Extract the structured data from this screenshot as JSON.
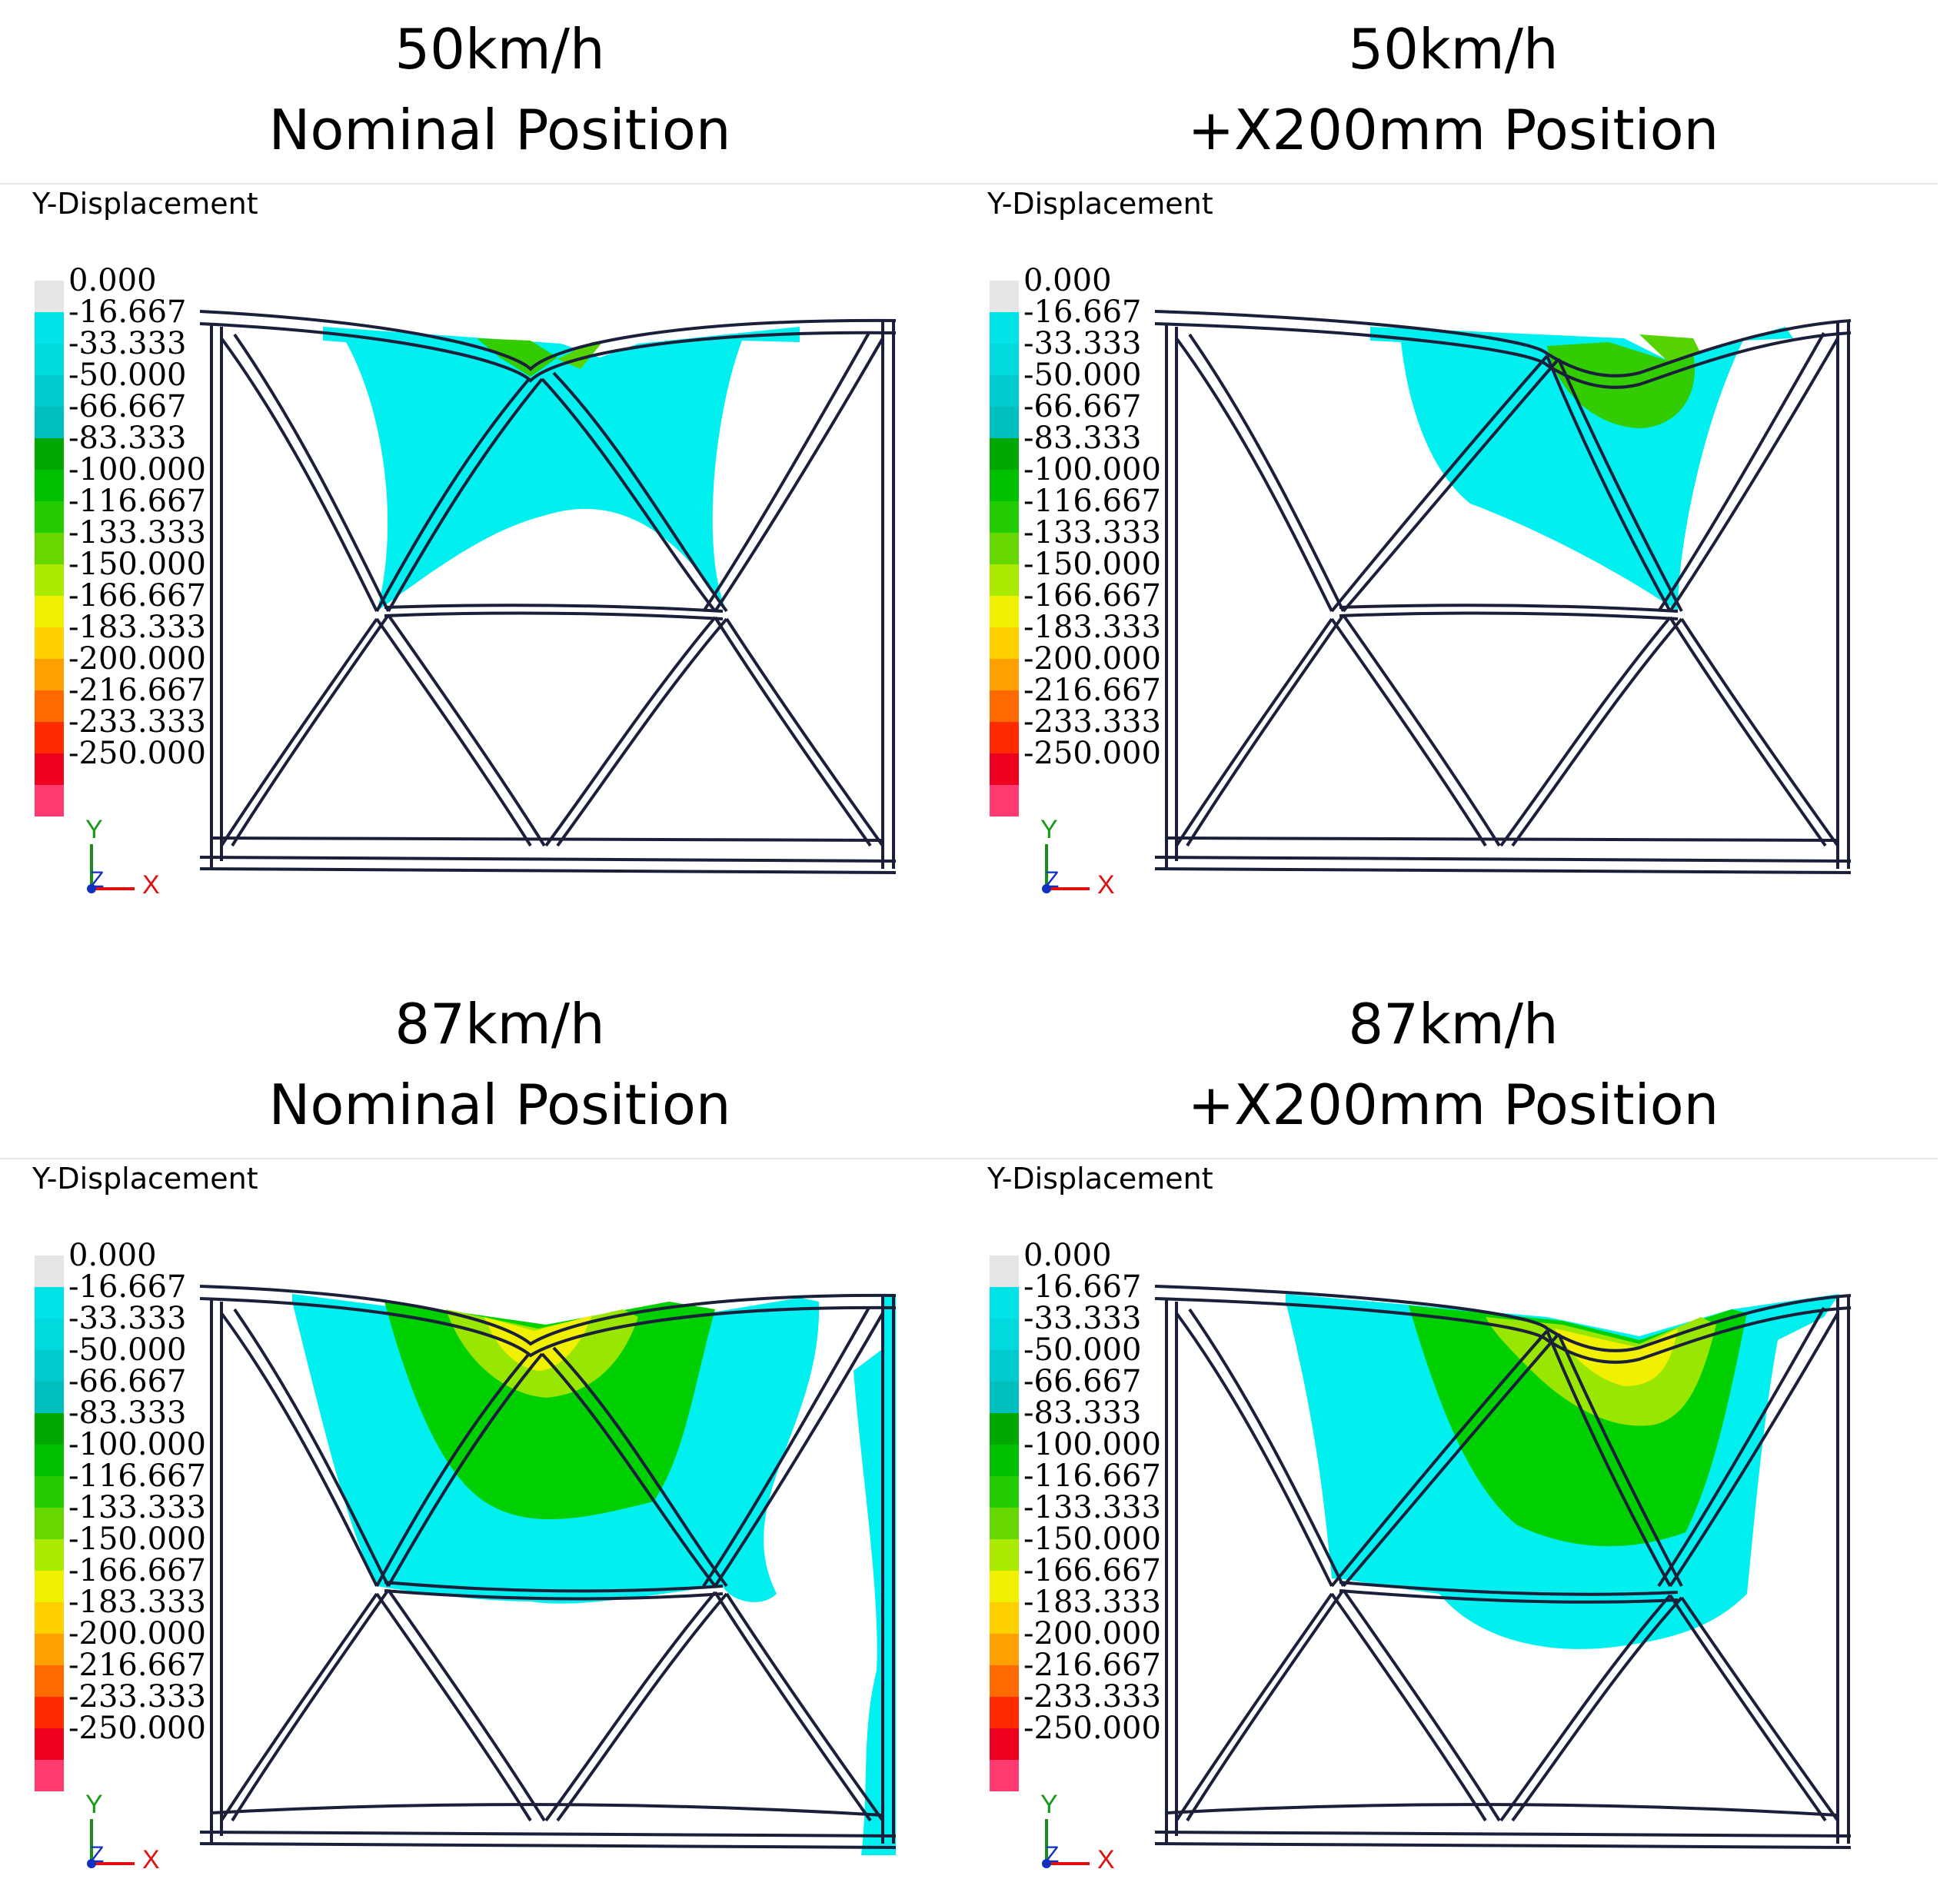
{
  "figure": {
    "panels": [
      {
        "speed": "50km/h",
        "position": "Nominal Position",
        "label": "Y-Displacement"
      },
      {
        "speed": "50km/h",
        "position": "+X200mm Position",
        "label": "Y-Displacement"
      },
      {
        "speed": "87km/h",
        "position": "Nominal Position",
        "label": "Y-Displacement"
      },
      {
        "speed": "87km/h",
        "position": "+X200mm Position",
        "label": "Y-Displacement"
      }
    ],
    "legend": {
      "values": [
        "0.000",
        "-16.667",
        "-33.333",
        "-50.000",
        "-66.667",
        "-83.333",
        "-100.000",
        "-116.667",
        "-133.333",
        "-150.000",
        "-166.667",
        "-183.333",
        "-200.000",
        "-216.667",
        "-233.333",
        "-250.000"
      ],
      "colors": [
        "#e6e6e6",
        "#00e4e8",
        "#00d9dd",
        "#00ccd0",
        "#00bfbf",
        "#00a800",
        "#00c000",
        "#22cc00",
        "#66d800",
        "#aaea00",
        "#f0f000",
        "#ffd000",
        "#ffa000",
        "#ff6a00",
        "#ff2a00",
        "#ee0020",
        "#ff3a70"
      ]
    },
    "axes": {
      "y": "Y",
      "z": "Z",
      "x": "X"
    }
  }
}
